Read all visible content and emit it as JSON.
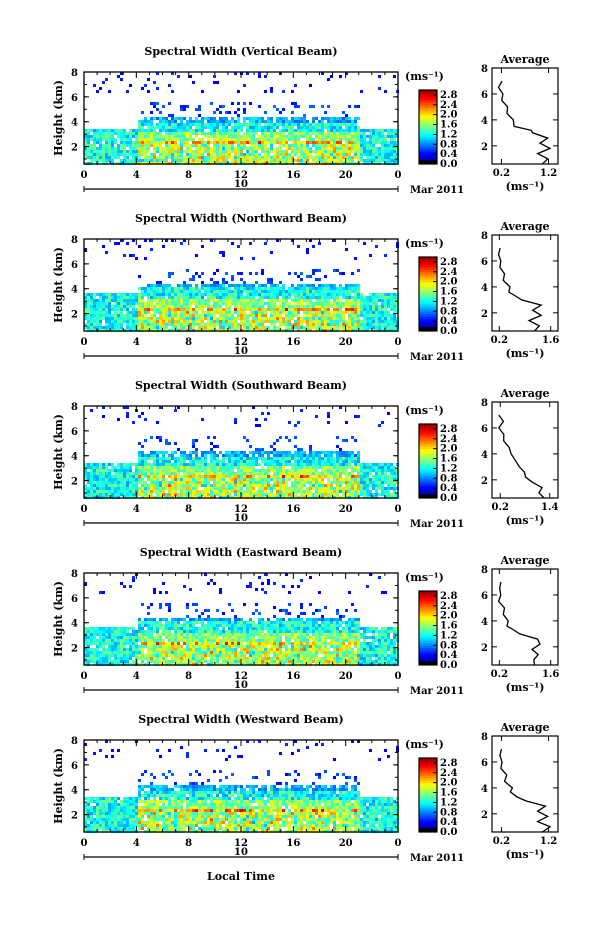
{
  "figure": {
    "xlabel": "Local Time",
    "date_day": "10",
    "date_month": "Mar 2011",
    "units": "(ms⁻¹)",
    "avg_title": "Average",
    "avg_xlabel": "(ms⁻¹)",
    "ylabel": "Height (km)"
  },
  "chart_data": [
    {
      "type": "heatmap",
      "title": "Spectral Width (Vertical Beam)",
      "x_ticks": [
        "0",
        "4",
        "8",
        "12",
        "16",
        "20",
        "0"
      ],
      "y_ticks": [
        "2",
        "4",
        "6",
        "8"
      ],
      "xlim": [
        0,
        24
      ],
      "ylim": [
        0.6,
        8
      ],
      "colorbar_ticks": [
        "0.0",
        "0.4",
        "0.8",
        "1.2",
        "1.6",
        "2.0",
        "2.4",
        "2.8"
      ],
      "colorbar_range": [
        0,
        3
      ],
      "average": {
        "title": "Average",
        "x_ticks": [
          "0.2",
          "1.2"
        ],
        "xlim": [
          0,
          1.4
        ],
        "y_ticks": [
          "2",
          "4",
          "6",
          "8"
        ],
        "profile": [
          [
            0.6,
            1.1
          ],
          [
            1.0,
            1.15
          ],
          [
            1.4,
            1.0
          ],
          [
            1.8,
            1.2
          ],
          [
            2.2,
            1.05
          ],
          [
            2.6,
            1.15
          ],
          [
            3.0,
            0.9
          ],
          [
            3.2,
            0.8
          ],
          [
            3.5,
            0.5
          ],
          [
            4.0,
            0.42
          ],
          [
            4.5,
            0.35
          ],
          [
            5.0,
            0.3
          ],
          [
            5.5,
            0.24
          ],
          [
            6.0,
            0.2
          ],
          [
            6.5,
            0.17
          ],
          [
            7.0,
            0.18
          ]
        ]
      }
    },
    {
      "type": "heatmap",
      "title": "Spectral Width (Northward Beam)",
      "x_ticks": [
        "0",
        "4",
        "8",
        "12",
        "16",
        "20",
        "0"
      ],
      "y_ticks": [
        "2",
        "4",
        "6",
        "8"
      ],
      "xlim": [
        0,
        24
      ],
      "ylim": [
        0.6,
        8
      ],
      "colorbar_ticks": [
        "0.0",
        "0.4",
        "0.8",
        "1.2",
        "1.6",
        "2.0",
        "2.4",
        "2.8"
      ],
      "colorbar_range": [
        0,
        3
      ],
      "average": {
        "title": "Average",
        "x_ticks": [
          "0.2",
          "1.6"
        ],
        "xlim": [
          0,
          1.8
        ],
        "y_ticks": [
          "2",
          "4",
          "6",
          "8"
        ],
        "profile": [
          [
            0.6,
            1.2
          ],
          [
            1.0,
            1.25
          ],
          [
            1.4,
            1.05
          ],
          [
            1.8,
            1.3
          ],
          [
            2.2,
            1.15
          ],
          [
            2.6,
            1.3
          ],
          [
            3.0,
            0.85
          ],
          [
            3.3,
            0.6
          ],
          [
            3.6,
            0.5
          ],
          [
            4.0,
            0.45
          ],
          [
            4.5,
            0.35
          ],
          [
            5.0,
            0.3
          ],
          [
            5.5,
            0.26
          ],
          [
            6.0,
            0.2
          ],
          [
            6.5,
            0.22
          ],
          [
            7.0,
            0.18
          ]
        ]
      }
    },
    {
      "type": "heatmap",
      "title": "Spectral Width (Southward Beam)",
      "x_ticks": [
        "0",
        "4",
        "8",
        "12",
        "16",
        "20",
        "0"
      ],
      "y_ticks": [
        "2",
        "4",
        "6",
        "8"
      ],
      "xlim": [
        0,
        24
      ],
      "ylim": [
        0.6,
        8
      ],
      "colorbar_ticks": [
        "0.0",
        "0.4",
        "0.8",
        "1.2",
        "1.6",
        "2.0",
        "2.4",
        "2.8"
      ],
      "colorbar_range": [
        0,
        3
      ],
      "average": {
        "title": "Average",
        "x_ticks": [
          "0.2",
          "1.4"
        ],
        "xlim": [
          0,
          1.6
        ],
        "y_ticks": [
          "2",
          "4",
          "6",
          "8"
        ],
        "profile": [
          [
            0.6,
            1.3
          ],
          [
            1.0,
            1.1
          ],
          [
            1.4,
            1.25
          ],
          [
            1.8,
            0.95
          ],
          [
            2.2,
            0.85
          ],
          [
            2.6,
            0.75
          ],
          [
            3.0,
            0.7
          ],
          [
            3.4,
            0.55
          ],
          [
            4.0,
            0.5
          ],
          [
            4.5,
            0.38
          ],
          [
            5.0,
            0.32
          ],
          [
            5.5,
            0.25
          ],
          [
            6.0,
            0.2
          ],
          [
            6.5,
            0.24
          ],
          [
            7.0,
            0.2
          ]
        ]
      }
    },
    {
      "type": "heatmap",
      "title": "Spectral Width (Eastward Beam)",
      "x_ticks": [
        "0",
        "4",
        "8",
        "12",
        "16",
        "20",
        "0"
      ],
      "y_ticks": [
        "2",
        "4",
        "6",
        "8"
      ],
      "xlim": [
        0,
        24
      ],
      "ylim": [
        0.6,
        8
      ],
      "colorbar_ticks": [
        "0.0",
        "0.4",
        "0.8",
        "1.2",
        "1.6",
        "2.0",
        "2.4",
        "2.8"
      ],
      "colorbar_range": [
        0,
        3
      ],
      "average": {
        "title": "Average",
        "x_ticks": [
          "0.2",
          "1.6"
        ],
        "xlim": [
          0,
          1.8
        ],
        "y_ticks": [
          "2",
          "4",
          "6",
          "8"
        ],
        "profile": [
          [
            0.6,
            1.2
          ],
          [
            1.0,
            1.1
          ],
          [
            1.4,
            1.3
          ],
          [
            1.8,
            1.05
          ],
          [
            2.2,
            1.35
          ],
          [
            2.6,
            1.2
          ],
          [
            3.0,
            0.8
          ],
          [
            3.3,
            0.55
          ],
          [
            3.6,
            0.45
          ],
          [
            4.0,
            0.4
          ],
          [
            4.5,
            0.35
          ],
          [
            5.0,
            0.3
          ],
          [
            5.5,
            0.22
          ],
          [
            6.0,
            0.2
          ],
          [
            6.5,
            0.25
          ],
          [
            7.0,
            0.2
          ]
        ]
      }
    },
    {
      "type": "heatmap",
      "title": "Spectral Width (Westward Beam)",
      "x_ticks": [
        "0",
        "4",
        "8",
        "12",
        "16",
        "20",
        "0"
      ],
      "y_ticks": [
        "2",
        "4",
        "6",
        "8"
      ],
      "xlim": [
        0,
        24
      ],
      "ylim": [
        0.6,
        8
      ],
      "colorbar_ticks": [
        "0.0",
        "0.4",
        "0.8",
        "1.2",
        "1.6",
        "2.0",
        "2.4",
        "2.8"
      ],
      "colorbar_range": [
        0,
        3
      ],
      "average": {
        "title": "Average",
        "x_ticks": [
          "0.2",
          "1.2"
        ],
        "xlim": [
          0,
          1.4
        ],
        "y_ticks": [
          "2",
          "4",
          "6",
          "8"
        ],
        "profile": [
          [
            0.6,
            1.1
          ],
          [
            1.0,
            1.2
          ],
          [
            1.4,
            1.0
          ],
          [
            1.8,
            1.15
          ],
          [
            2.2,
            1.0
          ],
          [
            2.6,
            1.1
          ],
          [
            3.0,
            0.75
          ],
          [
            3.3,
            0.5
          ],
          [
            3.7,
            0.42
          ],
          [
            4.0,
            0.4
          ],
          [
            4.5,
            0.3
          ],
          [
            5.0,
            0.28
          ],
          [
            5.5,
            0.22
          ],
          [
            6.0,
            0.18
          ],
          [
            6.5,
            0.2
          ],
          [
            7.0,
            0.17
          ]
        ]
      }
    }
  ]
}
